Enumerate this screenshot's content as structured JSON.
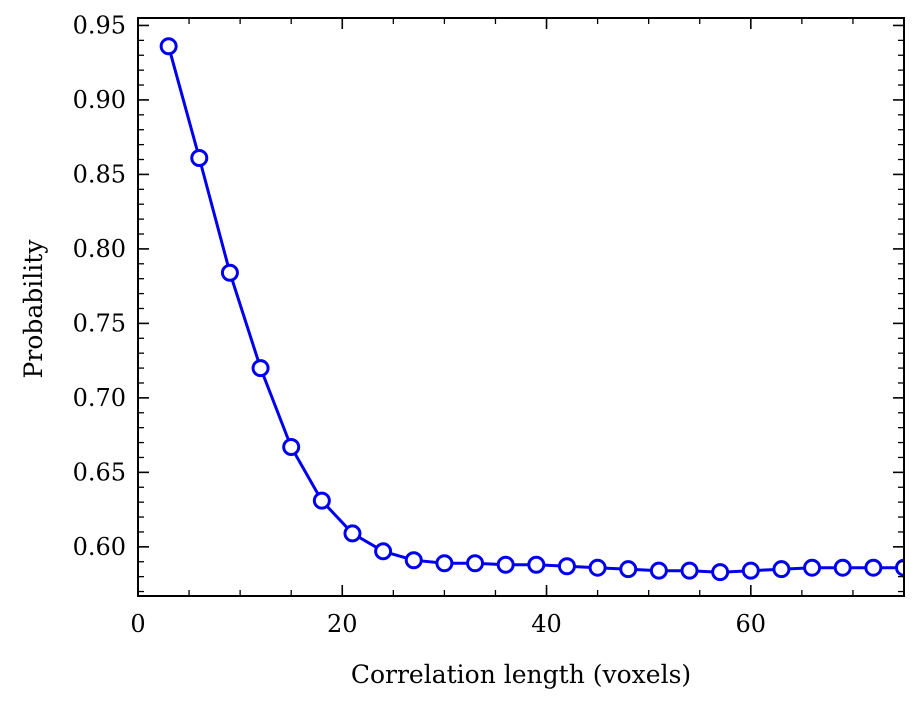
{
  "chart_data": {
    "type": "line",
    "title": "",
    "xlabel": "Correlation length (voxels)",
    "ylabel": "Probability",
    "xlim": [
      0,
      75
    ],
    "ylim": [
      0.567,
      0.955
    ],
    "x_ticks": [
      0,
      20,
      40,
      60
    ],
    "x_tick_labels": [
      "0",
      "20",
      "40",
      "60"
    ],
    "y_ticks": [
      0.6,
      0.65,
      0.7,
      0.75,
      0.8,
      0.85,
      0.9,
      0.95
    ],
    "y_tick_labels": [
      "0.60",
      "0.65",
      "0.70",
      "0.75",
      "0.80",
      "0.85",
      "0.90",
      "0.95"
    ],
    "grid": false,
    "line_color": "#0000ee",
    "marker": "open-circle",
    "series": [
      {
        "x": [
          3,
          6,
          9,
          12,
          15,
          18,
          21,
          24,
          27,
          30,
          33,
          36,
          39,
          42,
          45,
          48,
          51,
          54,
          57,
          60,
          63,
          66,
          69,
          72,
          75
        ],
        "y": [
          0.936,
          0.861,
          0.784,
          0.72,
          0.667,
          0.631,
          0.609,
          0.597,
          0.591,
          0.589,
          0.589,
          0.588,
          0.588,
          0.587,
          0.586,
          0.585,
          0.584,
          0.584,
          0.583,
          0.584,
          0.585,
          0.586,
          0.586,
          0.586,
          0.586
        ]
      }
    ]
  }
}
